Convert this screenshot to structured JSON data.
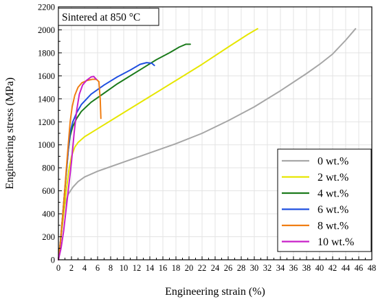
{
  "chart_data": {
    "type": "line",
    "title": "",
    "annotation": "Sintered at 850 °C",
    "xlabel": "Engineering strain (%)",
    "ylabel": "Engineering stress (MPa)",
    "xlim": [
      0,
      48
    ],
    "ylim": [
      0,
      2200
    ],
    "xticks": [
      0,
      2,
      4,
      6,
      8,
      10,
      12,
      14,
      16,
      18,
      20,
      22,
      24,
      26,
      28,
      30,
      32,
      34,
      36,
      38,
      40,
      42,
      44,
      46,
      48
    ],
    "yticks": [
      0,
      200,
      400,
      600,
      800,
      1000,
      1200,
      1400,
      1600,
      1800,
      2000,
      2200
    ],
    "grid": true,
    "legend_position": "bottom-right",
    "series": [
      {
        "name": "0 wt.%",
        "color": "#a6a6a6",
        "points": [
          [
            0,
            0
          ],
          [
            0.3,
            150
          ],
          [
            0.7,
            350
          ],
          [
            1.0,
            480
          ],
          [
            1.5,
            570
          ],
          [
            2.2,
            630
          ],
          [
            3.0,
            680
          ],
          [
            4.0,
            720
          ],
          [
            6,
            770
          ],
          [
            8,
            810
          ],
          [
            10,
            850
          ],
          [
            14,
            930
          ],
          [
            18,
            1010
          ],
          [
            22,
            1100
          ],
          [
            26,
            1210
          ],
          [
            30,
            1330
          ],
          [
            34,
            1470
          ],
          [
            38,
            1620
          ],
          [
            40,
            1700
          ],
          [
            42,
            1790
          ],
          [
            44,
            1910
          ],
          [
            45.5,
            2010
          ]
        ]
      },
      {
        "name": "2 wt.%",
        "color": "#e6e600",
        "points": [
          [
            0,
            0
          ],
          [
            0.4,
            200
          ],
          [
            0.8,
            400
          ],
          [
            1.2,
            600
          ],
          [
            1.6,
            780
          ],
          [
            2.0,
            900
          ],
          [
            2.5,
            980
          ],
          [
            3.0,
            1020
          ],
          [
            4,
            1070
          ],
          [
            6,
            1140
          ],
          [
            8,
            1210
          ],
          [
            10,
            1280
          ],
          [
            14,
            1420
          ],
          [
            18,
            1560
          ],
          [
            22,
            1700
          ],
          [
            26,
            1850
          ],
          [
            29,
            1960
          ],
          [
            30.5,
            2010
          ]
        ]
      },
      {
        "name": "4 wt.%",
        "color": "#1a7a1a",
        "points": [
          [
            0,
            0
          ],
          [
            0.3,
            150
          ],
          [
            0.6,
            350
          ],
          [
            0.9,
            550
          ],
          [
            1.2,
            750
          ],
          [
            1.5,
            950
          ],
          [
            1.8,
            1080
          ],
          [
            2.2,
            1160
          ],
          [
            2.8,
            1230
          ],
          [
            3.5,
            1290
          ],
          [
            5,
            1370
          ],
          [
            7,
            1450
          ],
          [
            9,
            1530
          ],
          [
            11,
            1600
          ],
          [
            13,
            1670
          ],
          [
            15,
            1740
          ],
          [
            17,
            1800
          ],
          [
            18.5,
            1850
          ],
          [
            19.5,
            1875
          ],
          [
            20.2,
            1875
          ]
        ]
      },
      {
        "name": "6 wt.%",
        "color": "#1f4fe0",
        "points": [
          [
            0,
            0
          ],
          [
            0.3,
            150
          ],
          [
            0.6,
            350
          ],
          [
            0.9,
            550
          ],
          [
            1.2,
            750
          ],
          [
            1.5,
            950
          ],
          [
            1.8,
            1110
          ],
          [
            2.2,
            1200
          ],
          [
            2.8,
            1280
          ],
          [
            3.5,
            1350
          ],
          [
            5,
            1440
          ],
          [
            7,
            1520
          ],
          [
            9,
            1590
          ],
          [
            11,
            1650
          ],
          [
            12.5,
            1700
          ],
          [
            13.5,
            1715
          ],
          [
            14.3,
            1710
          ],
          [
            14.7,
            1690
          ]
        ]
      },
      {
        "name": "8 wt.%",
        "color": "#f07d12",
        "points": [
          [
            0,
            0
          ],
          [
            0.3,
            150
          ],
          [
            0.6,
            350
          ],
          [
            0.9,
            550
          ],
          [
            1.2,
            780
          ],
          [
            1.5,
            1000
          ],
          [
            1.8,
            1200
          ],
          [
            2.1,
            1330
          ],
          [
            2.5,
            1430
          ],
          [
            3.0,
            1500
          ],
          [
            3.6,
            1540
          ],
          [
            4.4,
            1560
          ],
          [
            5.2,
            1570
          ],
          [
            5.8,
            1570
          ],
          [
            6.2,
            1550
          ],
          [
            6.4,
            1400
          ],
          [
            6.5,
            1230
          ]
        ]
      },
      {
        "name": "10 wt.%",
        "color": "#c81ec8",
        "points": [
          [
            0,
            0
          ],
          [
            0.4,
            100
          ],
          [
            0.8,
            250
          ],
          [
            1.2,
            450
          ],
          [
            1.6,
            650
          ],
          [
            2.0,
            850
          ],
          [
            2.4,
            1100
          ],
          [
            2.8,
            1300
          ],
          [
            3.2,
            1440
          ],
          [
            3.7,
            1520
          ],
          [
            4.3,
            1560
          ],
          [
            5.0,
            1590
          ],
          [
            5.4,
            1595
          ],
          [
            5.8,
            1570
          ]
        ]
      }
    ]
  }
}
